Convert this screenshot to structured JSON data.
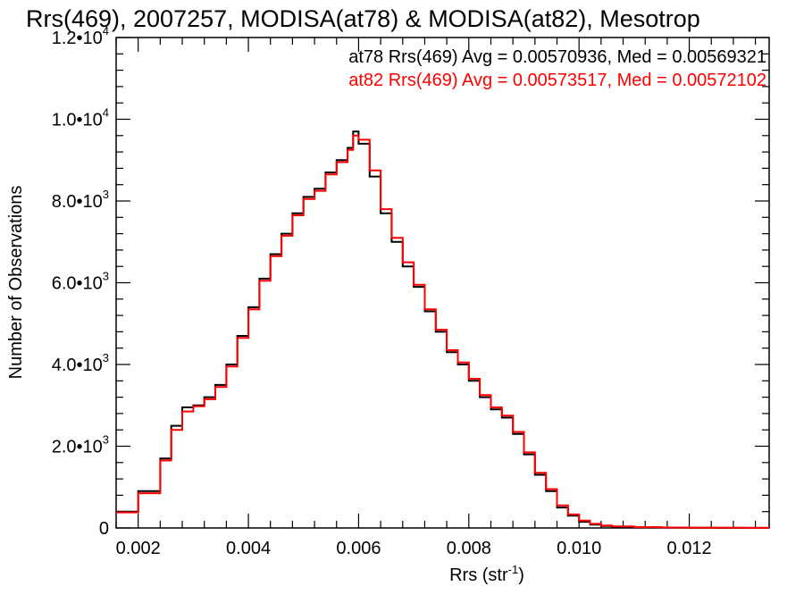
{
  "chart_data": {
    "type": "line",
    "title": "Rrs(469), 2007257, MODISA(at78) & MODISA(at82), Mesotrop",
    "xlabel": {
      "main": "Rrs (str",
      "sup": "-1",
      "end": ")"
    },
    "ylabel": "Number of Observations",
    "xlim": [
      0.0016,
      0.01345
    ],
    "ylim": [
      0,
      12000
    ],
    "x_ticks": [
      {
        "value": 0.002,
        "label": "0.002"
      },
      {
        "value": 0.004,
        "label": "0.004"
      },
      {
        "value": 0.006,
        "label": "0.006"
      },
      {
        "value": 0.008,
        "label": "0.008"
      },
      {
        "value": 0.01,
        "label": "0.010"
      },
      {
        "value": 0.012,
        "label": "0.012"
      }
    ],
    "y_ticks": [
      {
        "value": 0,
        "mant": "0",
        "exp": ""
      },
      {
        "value": 2000,
        "mant": "2.0•10",
        "exp": "3"
      },
      {
        "value": 4000,
        "mant": "4.0•10",
        "exp": "3"
      },
      {
        "value": 6000,
        "mant": "6.0•10",
        "exp": "3"
      },
      {
        "value": 8000,
        "mant": "8.0•10",
        "exp": "3"
      },
      {
        "value": 10000,
        "mant": "1.0•10",
        "exp": "4"
      },
      {
        "value": 12000,
        "mant": "1.2•10",
        "exp": "4"
      }
    ],
    "grid": false,
    "legend_position": "top-right",
    "series": [
      {
        "name": "at78",
        "color": "#000000",
        "legend_text": "at78 Rrs(469) Avg = 0.00570936, Med = 0.00569321",
        "x": [
          0.0016,
          0.002,
          0.0024,
          0.0026,
          0.0028,
          0.003,
          0.0032,
          0.0034,
          0.0036,
          0.0038,
          0.004,
          0.0042,
          0.0044,
          0.0046,
          0.0048,
          0.005,
          0.0052,
          0.0054,
          0.0056,
          0.0058,
          0.0059,
          0.006,
          0.0062,
          0.0064,
          0.0066,
          0.0068,
          0.007,
          0.0072,
          0.0074,
          0.0076,
          0.0078,
          0.008,
          0.0082,
          0.0084,
          0.0086,
          0.0088,
          0.009,
          0.0092,
          0.0094,
          0.0096,
          0.0098,
          0.01,
          0.0102,
          0.0104,
          0.0106,
          0.011,
          0.0115,
          0.012,
          0.0125,
          0.013,
          0.01345
        ],
        "values": [
          400,
          900,
          1700,
          2500,
          2950,
          3000,
          3200,
          3500,
          4000,
          4700,
          5400,
          6100,
          6700,
          7200,
          7700,
          8100,
          8300,
          8700,
          9000,
          9300,
          9700,
          9400,
          8600,
          7700,
          7000,
          6400,
          5900,
          5300,
          4800,
          4300,
          4000,
          3600,
          3200,
          2900,
          2700,
          2300,
          1800,
          1300,
          900,
          500,
          300,
          150,
          80,
          50,
          30,
          15,
          8,
          5,
          3,
          2,
          1
        ]
      },
      {
        "name": "at82",
        "color": "#ff0000",
        "legend_text": "at82 Rrs(469) Avg = 0.00573517, Med = 0.00572102",
        "x": [
          0.0016,
          0.002,
          0.0024,
          0.0026,
          0.0028,
          0.003,
          0.0032,
          0.0034,
          0.0036,
          0.0038,
          0.004,
          0.0042,
          0.0044,
          0.0046,
          0.0048,
          0.005,
          0.0052,
          0.0054,
          0.0056,
          0.0058,
          0.0059,
          0.006,
          0.0062,
          0.0064,
          0.0066,
          0.0068,
          0.007,
          0.0072,
          0.0074,
          0.0076,
          0.0078,
          0.008,
          0.0082,
          0.0084,
          0.0086,
          0.0088,
          0.009,
          0.0092,
          0.0094,
          0.0096,
          0.0098,
          0.01,
          0.0102,
          0.0104,
          0.0106,
          0.011,
          0.0115,
          0.012,
          0.0125,
          0.013,
          0.01345
        ],
        "values": [
          380,
          850,
          1650,
          2400,
          2850,
          2980,
          3150,
          3450,
          3950,
          4650,
          5350,
          6050,
          6650,
          7150,
          7650,
          8050,
          8250,
          8650,
          8950,
          9250,
          9600,
          9500,
          8750,
          7800,
          7100,
          6500,
          5950,
          5350,
          4850,
          4350,
          4050,
          3650,
          3250,
          2950,
          2750,
          2350,
          1850,
          1350,
          950,
          550,
          330,
          180,
          100,
          60,
          40,
          20,
          10,
          6,
          4,
          2,
          1
        ]
      }
    ]
  }
}
